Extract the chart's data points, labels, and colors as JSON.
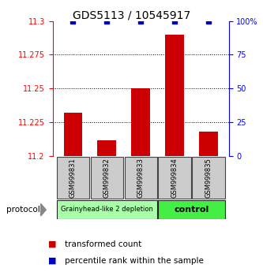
{
  "title": "GDS5113 / 10545917",
  "samples": [
    "GSM999831",
    "GSM999832",
    "GSM999833",
    "GSM999834",
    "GSM999835"
  ],
  "red_values": [
    11.232,
    11.212,
    11.25,
    11.29,
    11.218
  ],
  "blue_values": [
    100,
    100,
    100,
    100,
    100
  ],
  "ymin": 11.2,
  "ymax": 11.3,
  "yticks_left": [
    11.2,
    11.225,
    11.25,
    11.275,
    11.3
  ],
  "yticks_left_labels": [
    "11.2",
    "11.225",
    "11.25",
    "11.275",
    "11.3"
  ],
  "yticks_right": [
    0,
    25,
    50,
    75,
    100
  ],
  "yticks_right_labels": [
    "0",
    "25",
    "50",
    "75",
    "100%"
  ],
  "grid_lines": [
    11.225,
    11.25,
    11.275
  ],
  "bar_color": "#cc0000",
  "dot_color": "#0000cc",
  "group1_label": "Grainyhead-like 2 depletion",
  "group2_label": "control",
  "group1_color": "#aaffaa",
  "group2_color": "#44ee44",
  "protocol_label": "protocol",
  "legend1_color": "#cc0000",
  "legend2_color": "#0000cc",
  "legend1": "transformed count",
  "legend2": "percentile rank within the sample",
  "title_fontsize": 10,
  "tick_fontsize": 7,
  "sample_fontsize": 6,
  "legend_fontsize": 7.5
}
